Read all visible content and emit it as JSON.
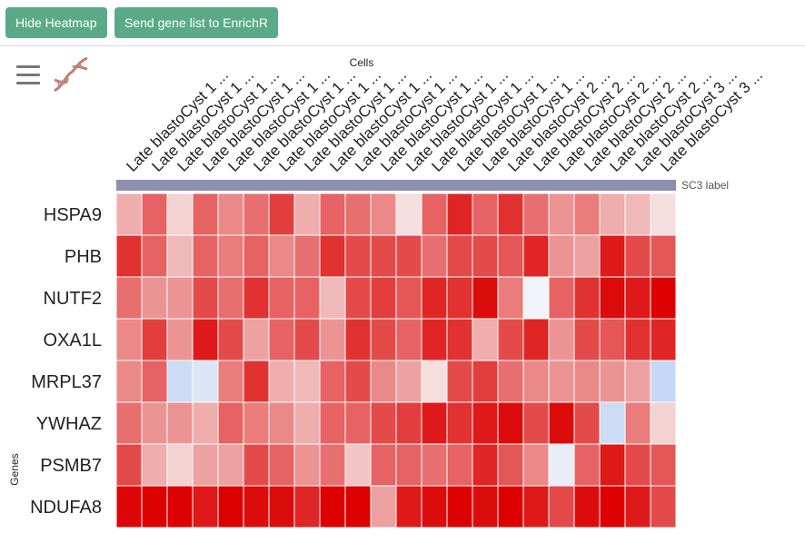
{
  "toolbar": {
    "hide_heatmap_label": "Hide Heatmap",
    "send_enrichr_label": "Send gene list to EnrichR"
  },
  "icons": {
    "menu": "hamburger-menu-icon",
    "dna": "dna-icon"
  },
  "chart_data": {
    "type": "heatmap",
    "xlabel": "Cells",
    "ylabel": "Genes",
    "annotation_row_label": "SC3 label",
    "annotation_color": "#8c8fae",
    "colors": {
      "low": "#c6d8f5",
      "mid": "#f7f7f7",
      "high": "#dc0000"
    },
    "x": [
      "Late blastoCyst 1 ...",
      "Late blastoCyst 1 ...",
      "Late blastoCyst 1 ...",
      "Late blastoCyst 1 ...",
      "Late blastoCyst 1 ...",
      "Late blastoCyst 1 ...",
      "Late blastoCyst 1 ...",
      "Late blastoCyst 1 ...",
      "Late blastoCyst 1 ...",
      "Late blastoCyst 1 ...",
      "Late blastoCyst 1 ...",
      "Late blastoCyst 1 ...",
      "Late blastoCyst 1 ...",
      "Late blastoCyst 1 ...",
      "Late blastoCyst 1 ...",
      "Late blastoCyst 2 ...",
      "Late blastoCyst 2 ...",
      "Late blastoCyst 2 ...",
      "Late blastoCyst 2 ...",
      "Late blastoCyst 2 ...",
      "Late blastoCyst 3 ...",
      "Late blastoCyst 3 ..."
    ],
    "y": [
      "HSPA9",
      "PHB",
      "NUTF2",
      "OXA1L",
      "MRPL37",
      "YWHAZ",
      "PSMB7",
      "NDUFA8"
    ],
    "values": [
      [
        0.3,
        0.6,
        0.15,
        0.6,
        0.45,
        0.55,
        0.75,
        0.3,
        0.6,
        0.55,
        0.45,
        0.1,
        0.6,
        0.85,
        0.6,
        0.8,
        0.55,
        0.4,
        0.5,
        0.3,
        0.25,
        0.1
      ],
      [
        0.8,
        0.6,
        0.25,
        0.6,
        0.5,
        0.6,
        0.45,
        0.55,
        0.8,
        0.7,
        0.7,
        0.7,
        0.55,
        0.7,
        0.7,
        0.65,
        0.85,
        0.4,
        0.35,
        0.9,
        0.7,
        0.65
      ],
      [
        0.55,
        0.4,
        0.4,
        0.7,
        0.55,
        0.8,
        0.6,
        0.6,
        0.25,
        0.7,
        0.75,
        0.65,
        0.85,
        0.8,
        0.95,
        0.5,
        -0.05,
        0.6,
        0.8,
        0.95,
        0.9,
        1.0
      ],
      [
        0.45,
        0.75,
        0.4,
        0.9,
        0.7,
        0.35,
        0.6,
        0.7,
        0.4,
        0.8,
        0.7,
        0.6,
        0.85,
        0.8,
        0.3,
        0.7,
        0.85,
        0.4,
        0.7,
        0.65,
        0.8,
        0.85
      ],
      [
        0.45,
        0.6,
        -0.3,
        -0.2,
        0.5,
        0.8,
        0.3,
        0.25,
        0.6,
        0.7,
        0.45,
        0.35,
        0.1,
        0.7,
        0.75,
        0.55,
        0.45,
        0.4,
        0.45,
        0.4,
        0.35,
        -0.35
      ],
      [
        0.55,
        0.4,
        0.4,
        0.3,
        0.6,
        0.5,
        0.45,
        0.3,
        0.6,
        0.6,
        0.7,
        0.75,
        0.9,
        0.8,
        0.9,
        0.95,
        0.7,
        0.95,
        0.7,
        -0.3,
        0.5,
        0.15
      ],
      [
        0.7,
        0.3,
        0.15,
        0.35,
        0.35,
        0.7,
        0.6,
        0.4,
        0.55,
        0.2,
        0.6,
        0.6,
        0.55,
        0.6,
        0.85,
        0.65,
        0.45,
        -0.1,
        0.6,
        0.9,
        0.7,
        0.65
      ],
      [
        0.98,
        1.0,
        1.0,
        0.9,
        1.0,
        0.95,
        0.95,
        0.85,
        1.0,
        1.0,
        0.35,
        0.9,
        0.95,
        1.0,
        0.95,
        1.0,
        0.9,
        0.7,
        0.95,
        1.0,
        0.9,
        0.7
      ]
    ]
  }
}
